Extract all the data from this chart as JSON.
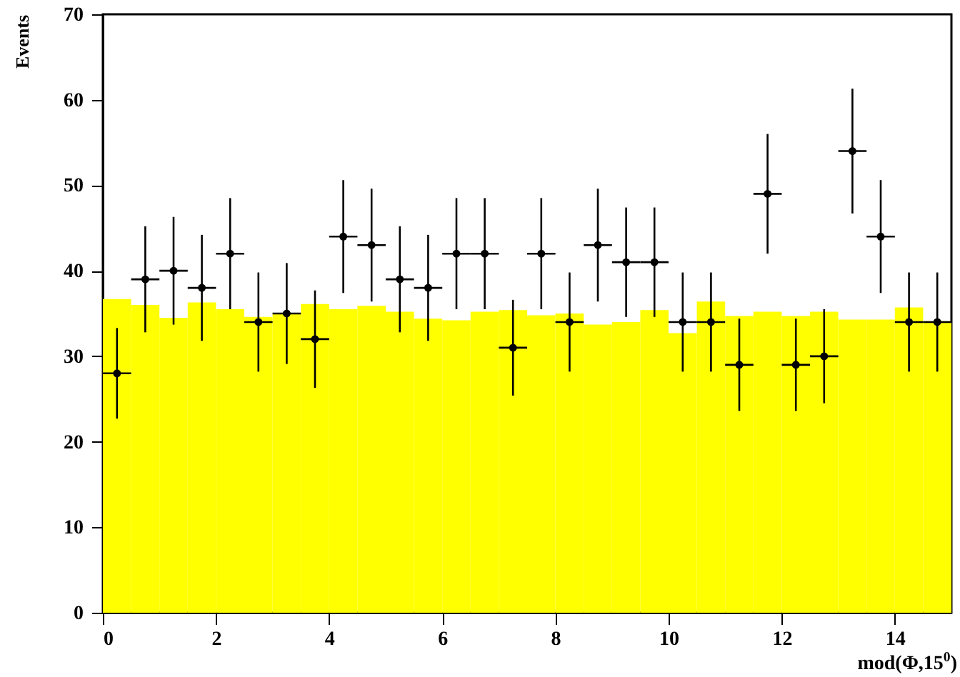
{
  "chart_data": {
    "type": "histogram",
    "ylabel": "Events",
    "xlabel": "mod(Φ,15$^{0}$)",
    "bins": [
      0,
      0.5,
      1,
      1.5,
      2,
      2.5,
      3,
      3.5,
      4,
      4.5,
      5,
      5.5,
      6,
      6.5,
      7,
      7.5,
      8,
      8.5,
      9,
      9.5,
      10,
      10.5,
      11,
      11.5,
      12,
      12.5,
      13,
      13.5,
      14,
      14.5,
      15
    ],
    "series": [
      {
        "type": "histogram",
        "color": "#ffff00",
        "values": [
          36.7,
          36.0,
          34.5,
          36.3,
          35.5,
          34.6,
          35.0,
          36.1,
          35.5,
          35.9,
          35.2,
          34.4,
          34.2,
          35.2,
          35.4,
          34.8,
          35.0,
          33.7,
          34.0,
          35.4,
          32.7,
          36.4,
          34.7,
          35.2,
          34.7,
          35.2,
          34.3,
          34.3,
          35.7,
          34.1
        ]
      },
      {
        "type": "scatter",
        "color": "#000000",
        "marker": "circle",
        "x": [
          0.25,
          0.75,
          1.25,
          1.75,
          2.25,
          2.75,
          3.25,
          3.75,
          4.25,
          4.75,
          5.25,
          5.75,
          6.25,
          6.75,
          7.25,
          7.75,
          8.25,
          8.75,
          9.25,
          9.75,
          10.25,
          10.75,
          11.25,
          11.75,
          12.25,
          12.75,
          13.25,
          13.75,
          14.25,
          14.75
        ],
        "values": [
          28,
          39,
          40,
          38,
          42,
          34,
          35,
          32,
          44,
          43,
          39,
          38,
          42,
          42,
          31,
          42,
          34,
          43,
          41,
          41,
          34,
          34,
          29,
          49,
          29,
          30,
          54,
          44,
          34,
          34
        ],
        "errors": [
          5.3,
          6.2,
          6.3,
          6.2,
          6.5,
          5.8,
          5.9,
          5.7,
          6.6,
          6.6,
          6.2,
          6.2,
          6.5,
          6.5,
          5.6,
          6.5,
          5.8,
          6.6,
          6.4,
          6.4,
          5.8,
          5.8,
          5.4,
          7.0,
          5.4,
          5.5,
          7.3,
          6.6,
          5.8,
          5.8
        ],
        "xerrors": [
          0.25,
          0.25,
          0.25,
          0.25,
          0.25,
          0.25,
          0.25,
          0.25,
          0.25,
          0.25,
          0.25,
          0.25,
          0.25,
          0.25,
          0.25,
          0.25,
          0.25,
          0.25,
          0.25,
          0.25,
          0.25,
          0.25,
          0.25,
          0.25,
          0.25,
          0.25,
          0.25,
          0.25,
          0.25,
          0.25
        ]
      }
    ],
    "xlim": [
      0,
      15
    ],
    "xticks": [
      0,
      2,
      4,
      6,
      8,
      10,
      12,
      14
    ],
    "ylim": [
      0,
      70
    ],
    "yticks": [
      0,
      10,
      20,
      30,
      40,
      50,
      60,
      70
    ],
    "grid": false
  }
}
